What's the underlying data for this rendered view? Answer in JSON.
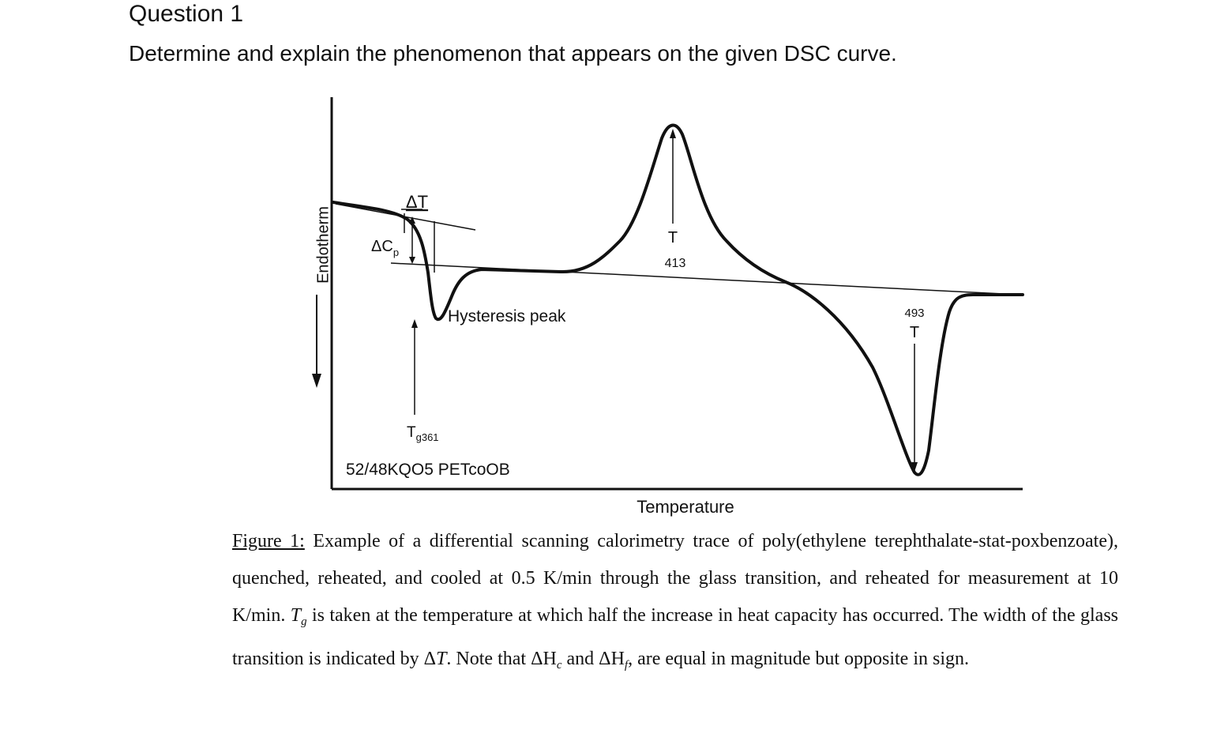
{
  "document": {
    "heading": "Question 1",
    "prompt": "Determine and explain the phenomenon that appears on the given DSC curve."
  },
  "figure": {
    "y_axis_label": "Endotherm",
    "x_axis_label": "Temperature",
    "delta_t_label": "ΔT",
    "delta_cp_label": "ΔC",
    "delta_cp_sub": "p",
    "hysteresis_label": "Hysteresis peak",
    "tg_label_main": "T",
    "tg_label_sub": "g361",
    "sample_label": "52/48KQO5 PETcoOB",
    "peak1_t": "T",
    "peak1_value": "413",
    "peak2_value": "493",
    "peak2_t": "T"
  },
  "caption": {
    "figure_ref": "Figure 1:",
    "part1": " Example of a differential scanning calorimetry trace of poly(ethylene terephthalate-stat-poxbenzoate), quenched, reheated, and cooled at 0.5 K/min through the glass transition, and reheated for measurement at 10 K/min. ",
    "tg_symbol": "T",
    "tg_sub": "g",
    "part2": " is taken at the temperature at which half the increase in heat capacity has occurred. The width of the glass transition is indicated by Δ",
    "delta_t_italic": "T",
    "part3": ". Note that ΔH",
    "hc_sub": "c",
    "part4": " and ΔH",
    "hf_sub": "f",
    "part5": ", are equal in magnitude but opposite in sign."
  }
}
